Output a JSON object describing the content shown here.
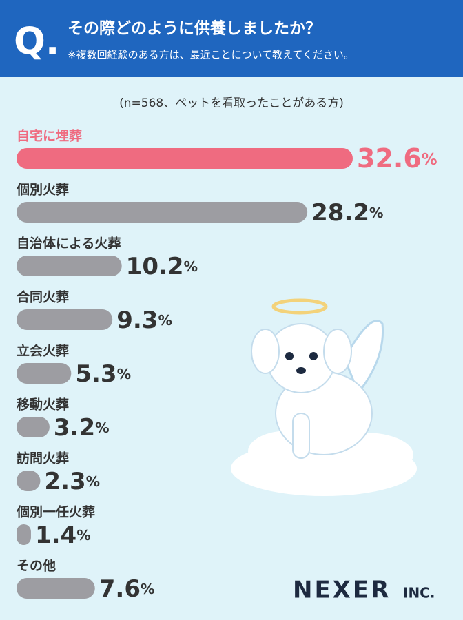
{
  "chart_data": {
    "type": "hbar",
    "title": "その際どのように供養しましたか？",
    "question_mark": "Q.",
    "subtitle": "※複数回経験のある方は、最近ことについて教えてください。",
    "note": "(n=568、ペットを看取ったことがある方)",
    "categories": [
      "自宅に埋葬",
      "個別火葬",
      "自治体による火葬",
      "合同火葬",
      "立会火葬",
      "移動火葬",
      "訪問火葬",
      "個別一任火葬",
      "その他"
    ],
    "values": [
      32.6,
      28.2,
      10.2,
      9.3,
      5.3,
      3.2,
      2.3,
      1.4,
      7.6
    ],
    "value_labels": [
      "32.6%",
      "28.2%",
      "10.2%",
      "9.3%",
      "5.3%",
      "3.2%",
      "2.3%",
      "1.4%",
      "7.6%"
    ],
    "colors": [
      "#ef6b80",
      "#9d9da2",
      "#9d9da2",
      "#9d9da2",
      "#9d9da2",
      "#9d9da2",
      "#9d9da2",
      "#9d9da2",
      "#9d9da2"
    ],
    "logo": {
      "name": "NEXER",
      "suffix": "INC."
    }
  }
}
